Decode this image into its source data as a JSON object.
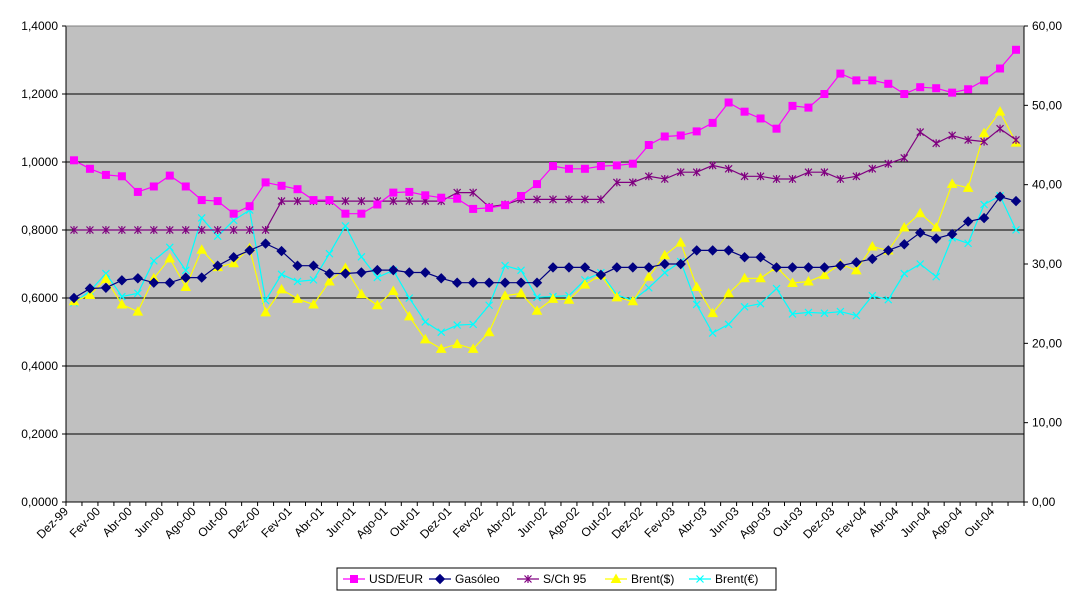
{
  "chart_data": {
    "type": "line",
    "title": "",
    "xlabel": "",
    "ylabel": "",
    "ylim": [
      0,
      1.4
    ],
    "y2lim": [
      0,
      60
    ],
    "y_ticks": [
      "0,0000",
      "0,2000",
      "0,4000",
      "0,6000",
      "0,8000",
      "1,0000",
      "1,2000",
      "1,4000"
    ],
    "y2_ticks": [
      "0,00",
      "10,00",
      "20,00",
      "30,00",
      "40,00",
      "50,00",
      "60,00"
    ],
    "x_tick_labels": [
      "Dez-99",
      "Fev-00",
      "Abr-00",
      "Jun-00",
      "Ago-00",
      "Out-00",
      "Dez-00",
      "Fev-01",
      "Abr-01",
      "Jun-01",
      "Ago-01",
      "Out-01",
      "Dez-01",
      "Fev-02",
      "Abr-02",
      "Jun-02",
      "Ago-02",
      "Out-02",
      "Dez-02",
      "Fev-03",
      "Abr-03",
      "Jun-03",
      "Ago-03",
      "Out-03",
      "Dez-03",
      "Fev-04",
      "Abr-04",
      "Jun-04",
      "Ago-04",
      "Out-04"
    ],
    "legend_position": "bottom",
    "series": [
      {
        "name": "USD/EUR",
        "axis": "left",
        "color": "#ff00ff",
        "marker": "square",
        "values": [
          1.005,
          0.98,
          0.962,
          0.958,
          0.912,
          0.928,
          0.96,
          0.928,
          0.888,
          0.885,
          0.848,
          0.87,
          0.94,
          0.93,
          0.92,
          0.888,
          0.888,
          0.848,
          0.848,
          0.875,
          0.91,
          0.912,
          0.902,
          0.895,
          0.892,
          0.862,
          0.865,
          0.873,
          0.9,
          0.935,
          0.988,
          0.98,
          0.98,
          0.988,
          0.99,
          0.995,
          1.05,
          1.075,
          1.078,
          1.09,
          1.115,
          1.175,
          1.148,
          1.128,
          1.098,
          1.165,
          1.16,
          1.2,
          1.26,
          1.24,
          1.24,
          1.23,
          1.2,
          1.22,
          1.217,
          1.204,
          1.214,
          1.24,
          1.275,
          1.33
        ]
      },
      {
        "name": "Gasóleo",
        "axis": "left",
        "color": "#000080",
        "marker": "diamond",
        "values": [
          0.6,
          0.628,
          0.63,
          0.652,
          0.658,
          0.645,
          0.645,
          0.66,
          0.66,
          0.695,
          0.72,
          0.74,
          0.76,
          0.738,
          0.695,
          0.695,
          0.672,
          0.672,
          0.675,
          0.682,
          0.682,
          0.675,
          0.675,
          0.658,
          0.645,
          0.645,
          0.645,
          0.645,
          0.645,
          0.645,
          0.69,
          0.69,
          0.69,
          0.668,
          0.69,
          0.69,
          0.69,
          0.7,
          0.7,
          0.74,
          0.74,
          0.74,
          0.72,
          0.72,
          0.69,
          0.69,
          0.69,
          0.69,
          0.695,
          0.705,
          0.715,
          0.74,
          0.758,
          0.792,
          0.775,
          0.788,
          0.825,
          0.835,
          0.898,
          0.885
        ]
      },
      {
        "name": "S/Ch 95",
        "axis": "left",
        "color": "#800080",
        "marker": "star",
        "values": [
          0.8,
          0.8,
          0.8,
          0.8,
          0.8,
          0.8,
          0.8,
          0.8,
          0.8,
          0.8,
          0.8,
          0.8,
          0.8,
          0.885,
          0.885,
          0.885,
          0.885,
          0.885,
          0.885,
          0.885,
          0.885,
          0.885,
          0.885,
          0.885,
          0.91,
          0.91,
          0.868,
          0.875,
          0.89,
          0.89,
          0.89,
          0.89,
          0.89,
          0.89,
          0.94,
          0.94,
          0.958,
          0.95,
          0.97,
          0.97,
          0.99,
          0.98,
          0.958,
          0.958,
          0.95,
          0.95,
          0.97,
          0.97,
          0.95,
          0.958,
          0.98,
          0.995,
          1.012,
          1.088,
          1.055,
          1.078,
          1.065,
          1.06,
          1.098,
          1.065
        ]
      },
      {
        "name": "Brent($)",
        "axis": "right",
        "color": "#ffff00",
        "marker": "triangle",
        "values": [
          25.3,
          26.1,
          28.1,
          24.9,
          24.0,
          28.2,
          30.7,
          27.1,
          31.8,
          29.6,
          30.1,
          32.0,
          23.9,
          26.8,
          25.6,
          24.9,
          27.8,
          29.5,
          26.2,
          24.8,
          26.6,
          23.4,
          20.5,
          19.3,
          19.9,
          19.3,
          21.4,
          26.0,
          26.3,
          24.1,
          25.6,
          25.5,
          27.4,
          28.6,
          25.8,
          25.3,
          28.4,
          31.1,
          32.7,
          27.1,
          23.8,
          26.3,
          28.2,
          28.2,
          29.6,
          27.6,
          27.8,
          28.6,
          30.0,
          29.2,
          32.2,
          31.7,
          34.6,
          36.4,
          34.6,
          40.1,
          39.6,
          46.5,
          49.2,
          45.3
        ]
      },
      {
        "name": "Brent(€)",
        "axis": "right",
        "color": "#00ffff",
        "marker": "x",
        "values": [
          25.1,
          26.6,
          28.8,
          25.9,
          26.3,
          30.4,
          32.1,
          29.2,
          35.8,
          33.5,
          35.5,
          36.8,
          25.4,
          28.7,
          27.8,
          28.0,
          31.3,
          34.8,
          30.9,
          28.3,
          29.2,
          25.7,
          22.7,
          21.4,
          22.3,
          22.4,
          24.8,
          29.8,
          29.2,
          25.8,
          25.9,
          26.0,
          28.0,
          28.9,
          26.1,
          25.4,
          27.0,
          28.9,
          30.3,
          24.9,
          21.3,
          22.4,
          24.6,
          25.0,
          26.9,
          23.7,
          23.9,
          23.8,
          24.0,
          23.5,
          26.0,
          25.5,
          28.8,
          30.0,
          28.4,
          33.3,
          32.6,
          37.5,
          38.6,
          34.3
        ]
      }
    ]
  }
}
